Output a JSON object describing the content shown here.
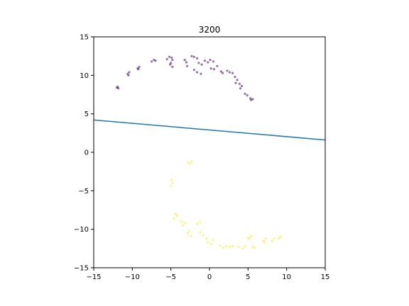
{
  "chart_data": {
    "type": "scatter",
    "title": "3200",
    "xlabel": "",
    "ylabel": "",
    "xlim": [
      -15,
      15
    ],
    "ylim": [
      -15,
      15
    ],
    "xticks": [
      -15,
      -10,
      -5,
      0,
      5,
      10,
      15
    ],
    "yticks": [
      -15,
      -10,
      -5,
      0,
      5,
      10,
      15
    ],
    "grid": false,
    "series": [
      {
        "color": "#440154",
        "points": [
          [
            -12.0,
            8.4
          ],
          [
            -11.8,
            8.3
          ],
          [
            -11.9,
            8.5
          ],
          [
            -10.6,
            10.2
          ],
          [
            -10.5,
            10.0
          ],
          [
            -10.4,
            10.4
          ],
          [
            -9.3,
            10.9
          ],
          [
            -9.1,
            11.1
          ],
          [
            -9.2,
            10.8
          ],
          [
            -7.5,
            11.8
          ],
          [
            -7.2,
            12.0
          ],
          [
            -7.0,
            11.9
          ],
          [
            -5.5,
            12.1
          ],
          [
            -5.2,
            12.4
          ],
          [
            -4.9,
            12.3
          ],
          [
            -4.8,
            12.0
          ],
          [
            -5.0,
            11.6
          ],
          [
            -4.8,
            11.1
          ],
          [
            -5.1,
            11.4
          ],
          [
            -3.2,
            12.0
          ],
          [
            -3.0,
            11.7
          ],
          [
            -2.9,
            11.2
          ],
          [
            -2.3,
            12.5
          ],
          [
            -2.0,
            12.4
          ],
          [
            -1.6,
            12.2
          ],
          [
            -2.0,
            10.7
          ],
          [
            -1.6,
            10.4
          ],
          [
            -1.1,
            10.2
          ],
          [
            -1.4,
            11.6
          ],
          [
            -1.0,
            11.4
          ],
          [
            -0.6,
            11.9
          ],
          [
            -0.2,
            11.7
          ],
          [
            0.1,
            12.0
          ],
          [
            0.5,
            11.8
          ],
          [
            0.2,
            10.9
          ],
          [
            0.6,
            10.8
          ],
          [
            1.0,
            11.2
          ],
          [
            1.5,
            10.5
          ],
          [
            1.7,
            10.3
          ],
          [
            2.3,
            10.6
          ],
          [
            2.6,
            10.4
          ],
          [
            3.0,
            10.3
          ],
          [
            3.3,
            9.8
          ],
          [
            3.6,
            9.4
          ],
          [
            3.4,
            9.0
          ],
          [
            3.9,
            8.9
          ],
          [
            4.2,
            8.6
          ],
          [
            4.0,
            8.3
          ],
          [
            4.6,
            7.6
          ],
          [
            4.9,
            7.4
          ],
          [
            5.3,
            7.0
          ],
          [
            5.6,
            6.9
          ],
          [
            5.4,
            6.8
          ]
        ]
      },
      {
        "color": "#fde725",
        "points": [
          [
            -2.8,
            -1.3
          ],
          [
            -2.5,
            -1.5
          ],
          [
            -2.3,
            -1.2
          ],
          [
            -4.9,
            -3.6
          ],
          [
            -5.0,
            -4.4
          ],
          [
            -4.8,
            -4.0
          ],
          [
            -4.4,
            -8.0
          ],
          [
            -4.6,
            -8.6
          ],
          [
            -4.2,
            -8.2
          ],
          [
            -3.6,
            -9.0
          ],
          [
            -3.4,
            -9.5
          ],
          [
            -3.1,
            -9.2
          ],
          [
            -2.8,
            -10.5
          ],
          [
            -2.4,
            -10.9
          ],
          [
            -2.6,
            -10.2
          ],
          [
            -1.6,
            -9.3
          ],
          [
            -1.2,
            -9.1
          ],
          [
            -1.2,
            -10.4
          ],
          [
            -0.8,
            -10.8
          ],
          [
            -0.4,
            -11.2
          ],
          [
            -0.2,
            -11.7
          ],
          [
            0.2,
            -11.9
          ],
          [
            0.5,
            -11.4
          ],
          [
            1.4,
            -12.1
          ],
          [
            1.8,
            -12.4
          ],
          [
            2.2,
            -12.2
          ],
          [
            2.6,
            -12.3
          ],
          [
            3.0,
            -12.2
          ],
          [
            3.8,
            -12.3
          ],
          [
            4.3,
            -12.5
          ],
          [
            4.6,
            -12.2
          ],
          [
            5.0,
            -11.1
          ],
          [
            5.4,
            -10.9
          ],
          [
            5.2,
            -11.2
          ],
          [
            5.6,
            -12.3
          ],
          [
            5.9,
            -12.4
          ],
          [
            7.0,
            -11.5
          ],
          [
            7.3,
            -11.2
          ],
          [
            7.1,
            -11.7
          ],
          [
            8.1,
            -11.5
          ],
          [
            8.4,
            -11.2
          ],
          [
            9.2,
            -11.0
          ],
          [
            9.0,
            -11.2
          ]
        ]
      },
      {
        "type": "line",
        "color": "#1f77b4",
        "points": [
          [
            -15,
            4.2
          ],
          [
            15,
            1.6
          ]
        ]
      }
    ]
  }
}
